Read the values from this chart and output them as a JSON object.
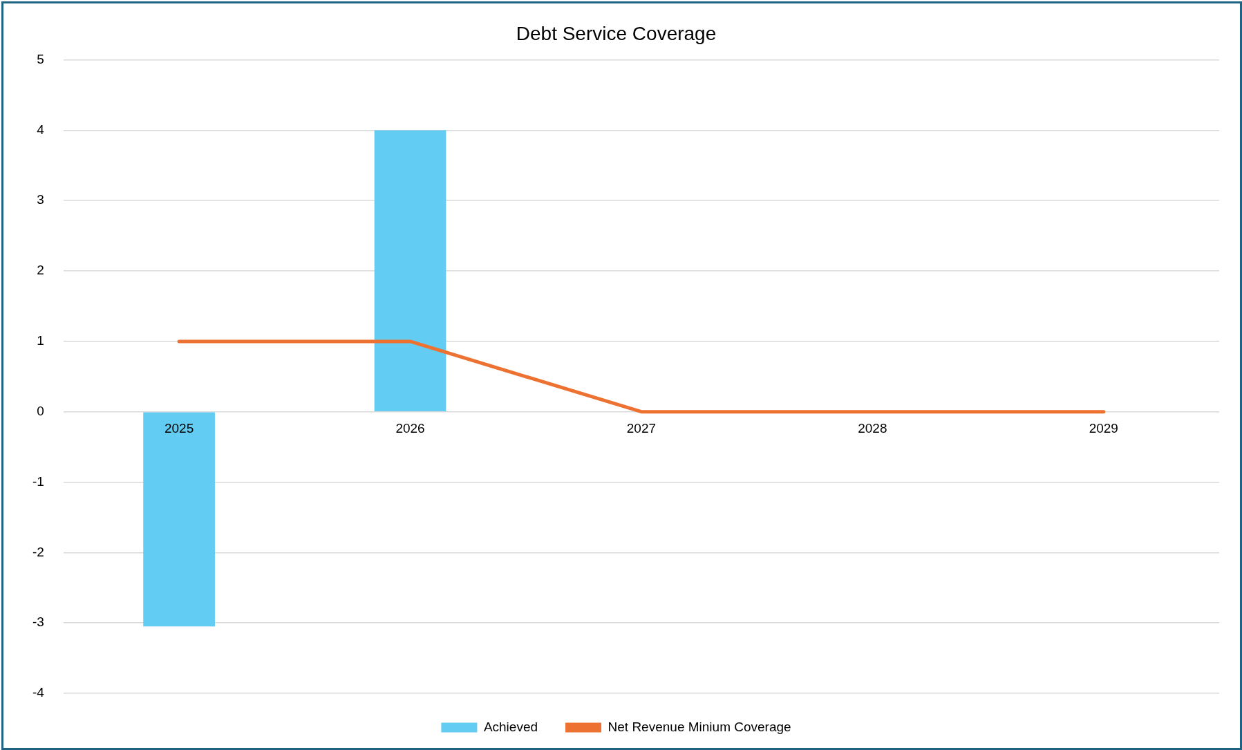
{
  "chart_data": {
    "type": "bar",
    "title": "Debt Service Coverage",
    "categories": [
      "2025",
      "2026",
      "2027",
      "2028",
      "2029"
    ],
    "series": [
      {
        "name": "Achieved",
        "color": "#62ccf2",
        "values": [
          -3.05,
          4,
          0,
          0,
          0
        ]
      },
      {
        "name": "Net Revenue Minium Coverage",
        "type": "line",
        "color": "#ed7131",
        "values": [
          1,
          1,
          0,
          0,
          0
        ]
      }
    ],
    "ylim": [
      -4,
      5
    ],
    "yticks": [
      -4,
      -3,
      -2,
      -1,
      0,
      1,
      2,
      3,
      4,
      5
    ],
    "grid": "y",
    "legend": "bottom"
  }
}
